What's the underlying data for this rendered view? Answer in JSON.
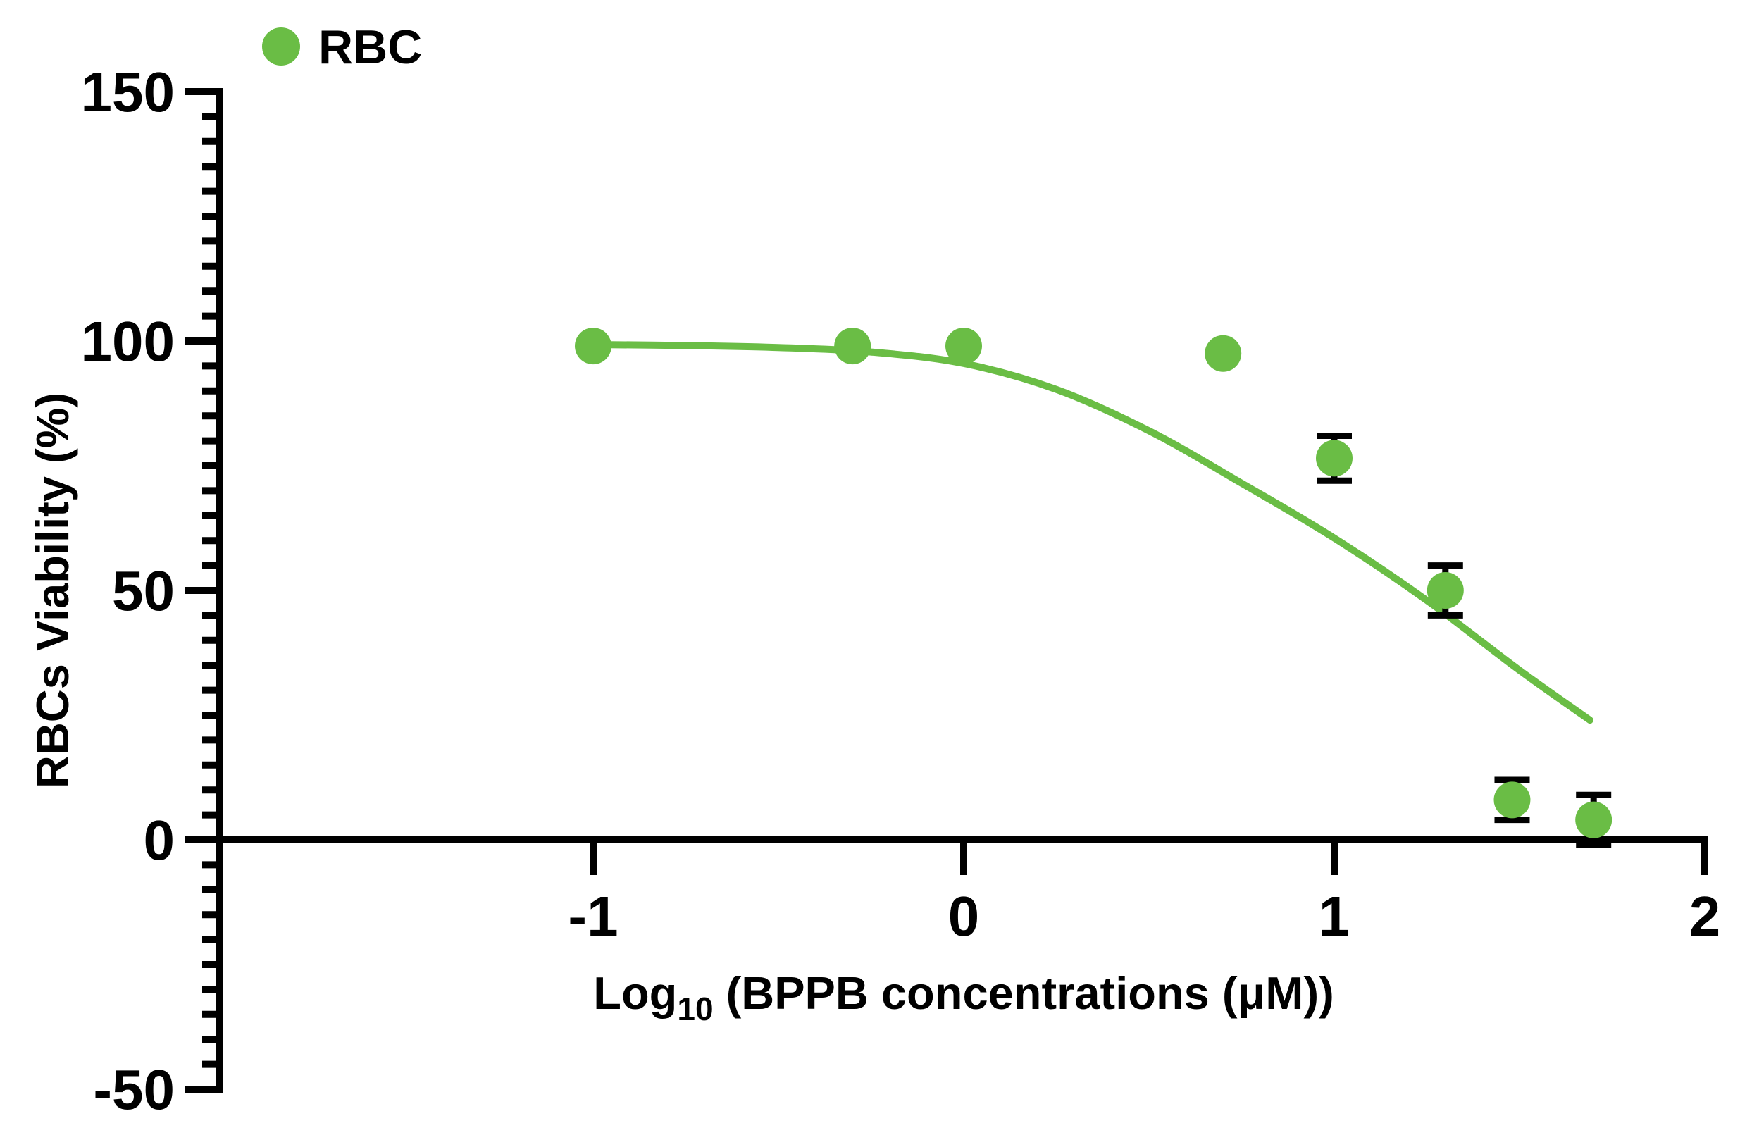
{
  "legend": {
    "label": "RBC",
    "marker_color": "#6ABD45"
  },
  "y_axis": {
    "title": "RBCs Viability (%)",
    "tick_values": [
      150,
      100,
      50,
      0,
      -50
    ],
    "tick_labels": [
      "150",
      "100",
      "50",
      "0",
      "-50"
    ],
    "minor_tick_step": 5,
    "range": [
      -50,
      150
    ]
  },
  "x_axis": {
    "title_main": "Log",
    "title_sub": "10",
    "title_rest": " (BPPB concentrations (μM))",
    "tick_values": [
      -1,
      0,
      1,
      2
    ],
    "tick_labels": [
      "-1",
      "0",
      "1",
      "2"
    ],
    "range": [
      -2,
      2.05
    ]
  },
  "colors": {
    "series_green": "#6ABD45",
    "error_bar_black": "#000000",
    "axis_black": "#000000"
  },
  "chart_data": {
    "type": "scatter",
    "title": "",
    "xlabel": "Log10 (BPPB concentrations (μM))",
    "ylabel": "RBCs Viability (%)",
    "xlim": [
      -2,
      2.05
    ],
    "ylim": [
      -50,
      150
    ],
    "grid": false,
    "legend_position": "top-left",
    "series": [
      {
        "name": "RBC",
        "color": "#6ABD45",
        "marker": "circle",
        "points": [
          {
            "x": -1.0,
            "y": 99,
            "err": 0
          },
          {
            "x": -0.3,
            "y": 99,
            "err": 0
          },
          {
            "x": 0.0,
            "y": 99,
            "err": 0
          },
          {
            "x": 0.7,
            "y": 97.5,
            "err": 0
          },
          {
            "x": 1.0,
            "y": 76.5,
            "err": 4.5
          },
          {
            "x": 1.3,
            "y": 50,
            "err": 5
          },
          {
            "x": 1.48,
            "y": 8,
            "err": 4
          },
          {
            "x": 1.7,
            "y": 4,
            "err": 5
          }
        ]
      }
    ],
    "fit_curve": {
      "color": "#6ABD45",
      "x": [
        -1.0,
        -0.75,
        -0.5,
        -0.25,
        0.0,
        0.25,
        0.5,
        0.75,
        1.0,
        1.25,
        1.5,
        1.69
      ],
      "y": [
        99.3,
        99.1,
        98.7,
        97.8,
        95.5,
        90.3,
        82.0,
        71.5,
        60.5,
        48.0,
        34.0,
        24.0
      ]
    }
  }
}
